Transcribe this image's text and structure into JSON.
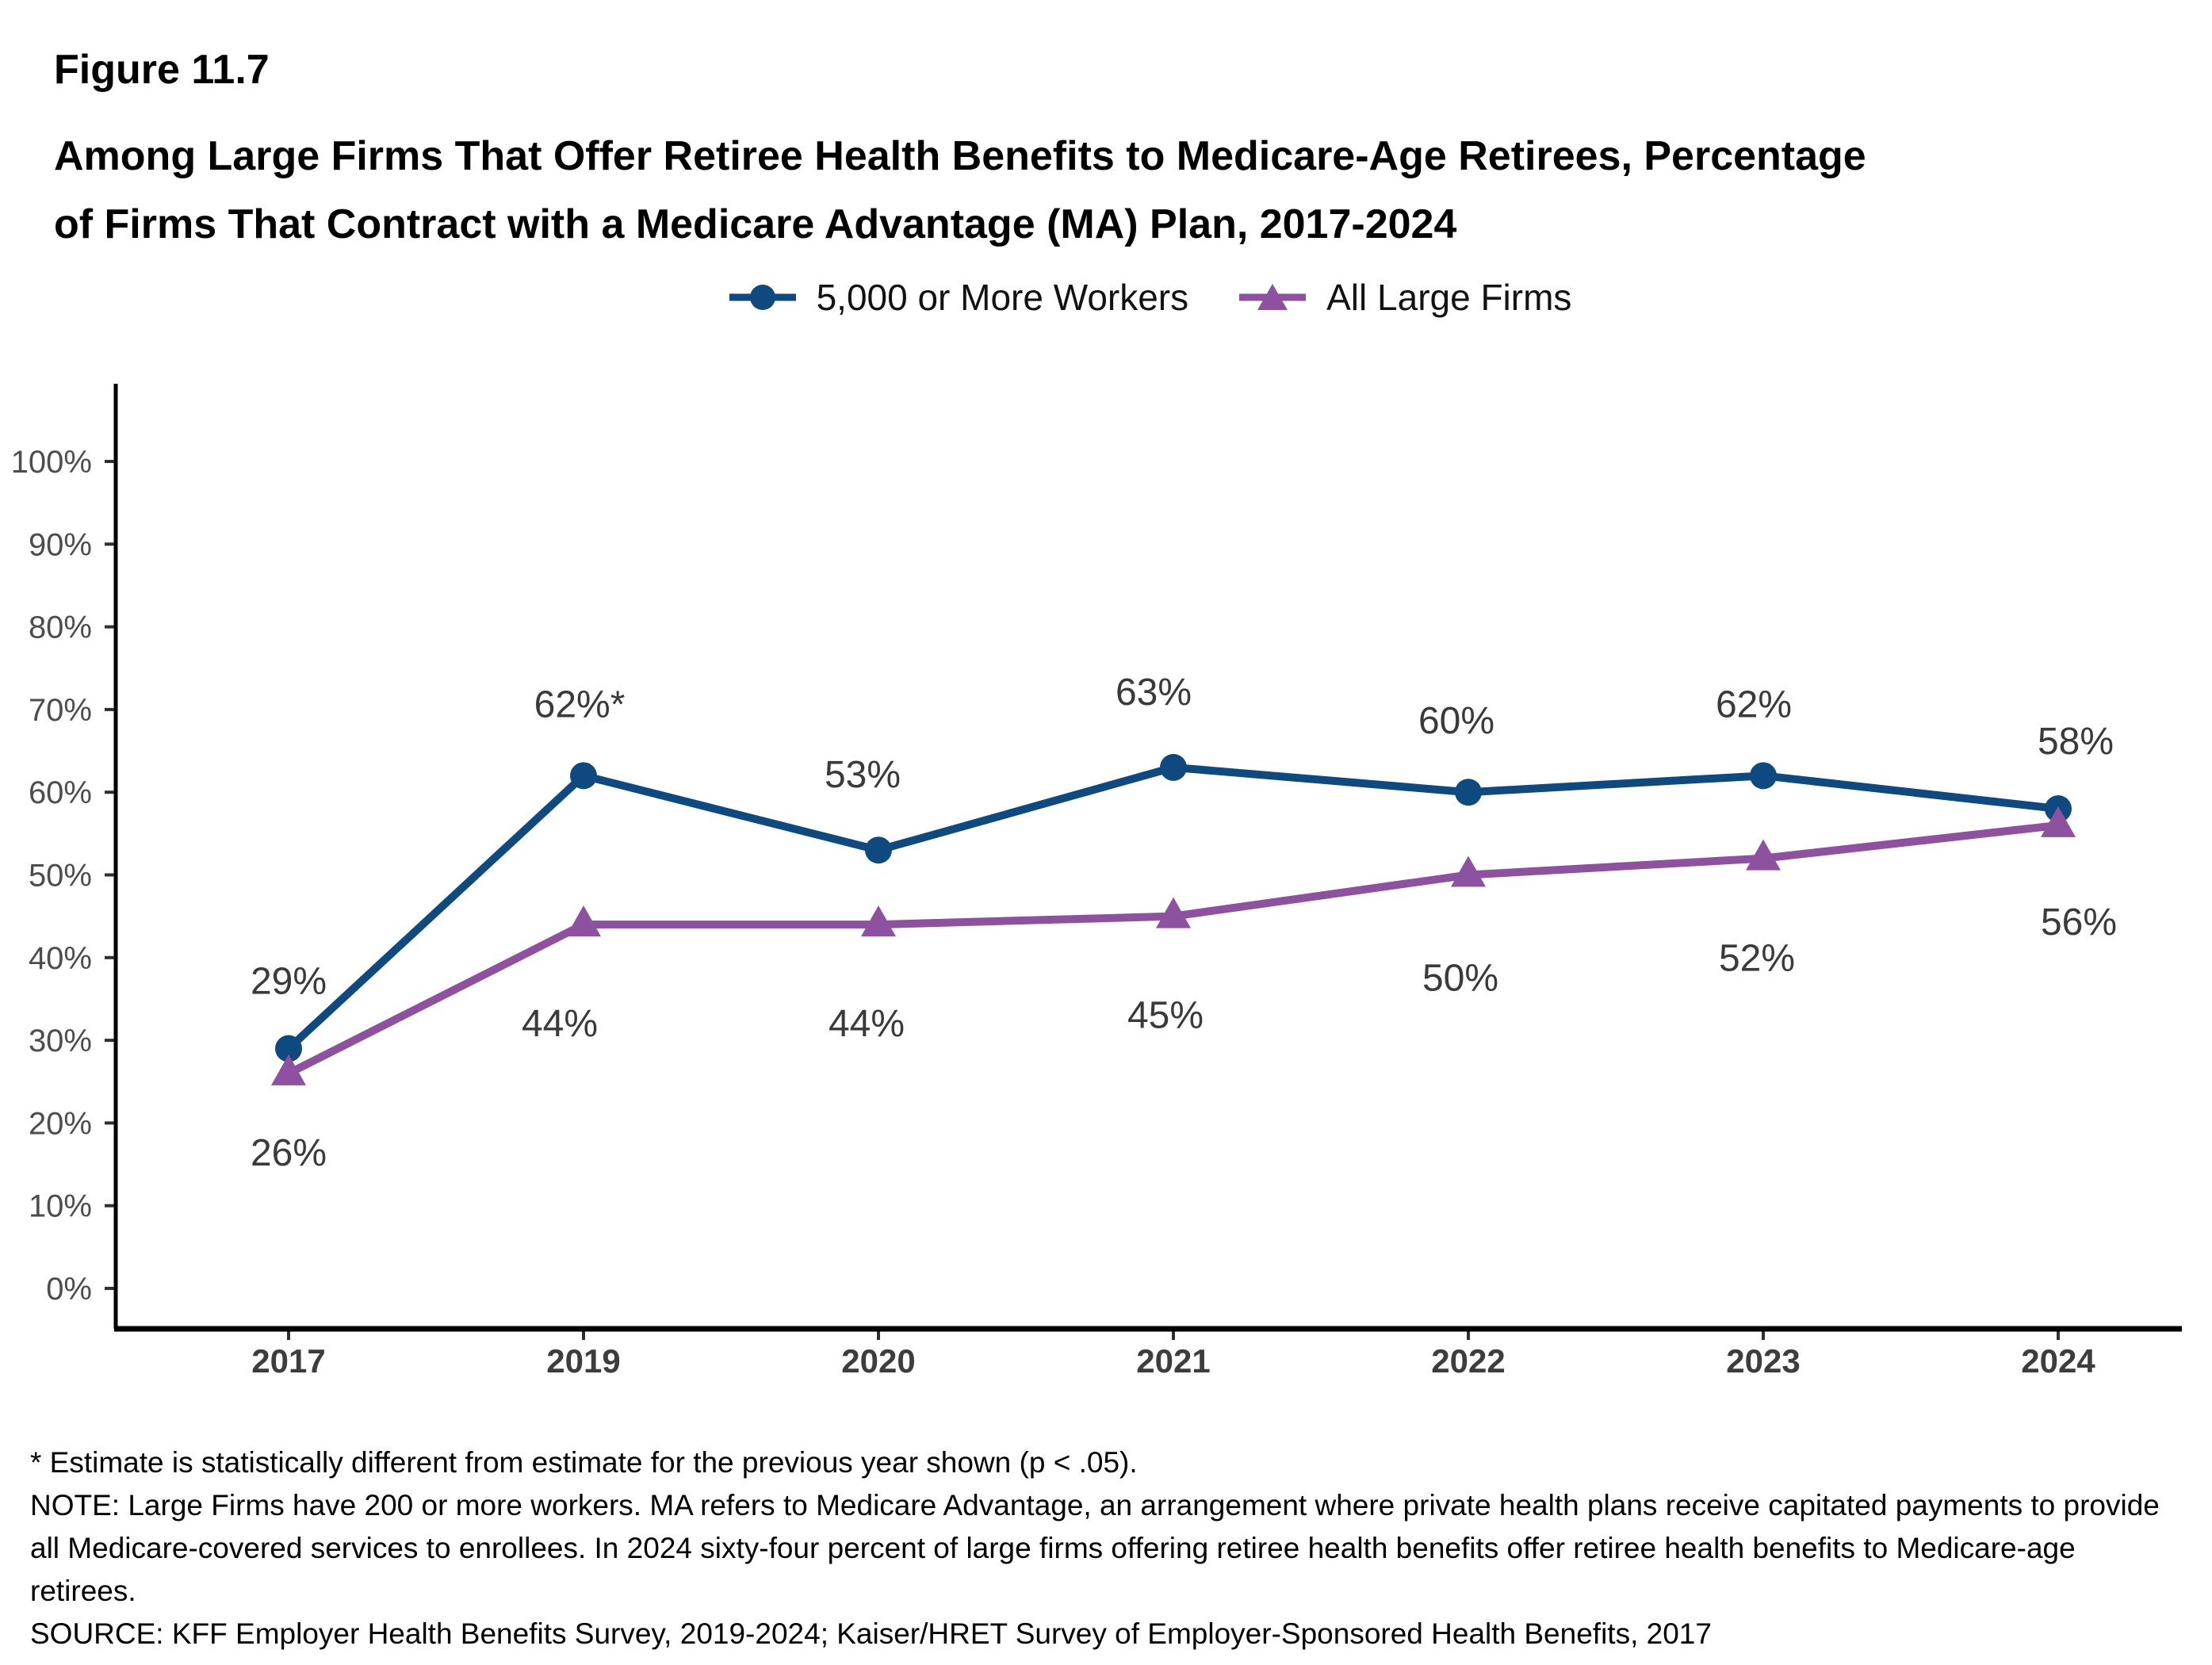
{
  "header": {
    "figure_label": "Figure 11.7",
    "title_lines": [
      "Among Large Firms That Offer Retiree Health Benefits to Medicare-Age Retirees, Percentage",
      "of Firms That Contract with a Medicare Advantage (MA) Plan, 2017-2024"
    ]
  },
  "chart_data": {
    "type": "line",
    "title": "Among Large Firms That Offer Retiree Health Benefits to Medicare-Age Retirees, Percentage of Firms That Contract with a Medicare Advantage (MA) Plan, 2017-2024",
    "categories": [
      "2017",
      "2019",
      "2020",
      "2021",
      "2022",
      "2023",
      "2024"
    ],
    "series": [
      {
        "name": "5,000 or More Workers",
        "marker": "circle",
        "color": "#0E4A80",
        "values": [
          29,
          62,
          53,
          63,
          60,
          62,
          58
        ],
        "point_labels": [
          "29%",
          "62%*",
          "53%",
          "63%",
          "60%",
          "62%",
          "58%"
        ]
      },
      {
        "name": "All Large Firms",
        "marker": "triangle",
        "color": "#8E51A0",
        "values": [
          26,
          44,
          44,
          45,
          50,
          52,
          56
        ],
        "point_labels": [
          "26%",
          "44%",
          "44%",
          "45%",
          "50%",
          "52%",
          "56%"
        ]
      }
    ],
    "xlabel": "",
    "ylabel": "",
    "ylim": [
      0,
      100
    ],
    "ytick_step": 10,
    "ytick_labels": [
      "0%",
      "10%",
      "20%",
      "30%",
      "40%",
      "50%",
      "60%",
      "70%",
      "80%",
      "90%",
      "100%"
    ],
    "grid": false,
    "legend_position": "top-center",
    "axis_color": "#000000",
    "tick_label_color": "#4D4D4D",
    "x_tick_label_color": "#3D3D3D",
    "data_label_color": "#3A3A3A"
  },
  "footnotes": {
    "star": "* Estimate is statistically different from estimate for the previous year shown (p < .05).",
    "note": "NOTE: Large Firms have 200 or more workers.  MA refers to Medicare Advantage, an arrangement where private health plans receive capitated payments to provide all Medicare-covered services to enrollees.  In 2024 sixty-four percent of large firms offering retiree health benefits offer retiree health benefits to Medicare-age retirees.",
    "source": "SOURCE: KFF Employer Health Benefits Survey, 2019-2024; Kaiser/HRET Survey of Employer-Sponsored Health Benefits, 2017"
  }
}
